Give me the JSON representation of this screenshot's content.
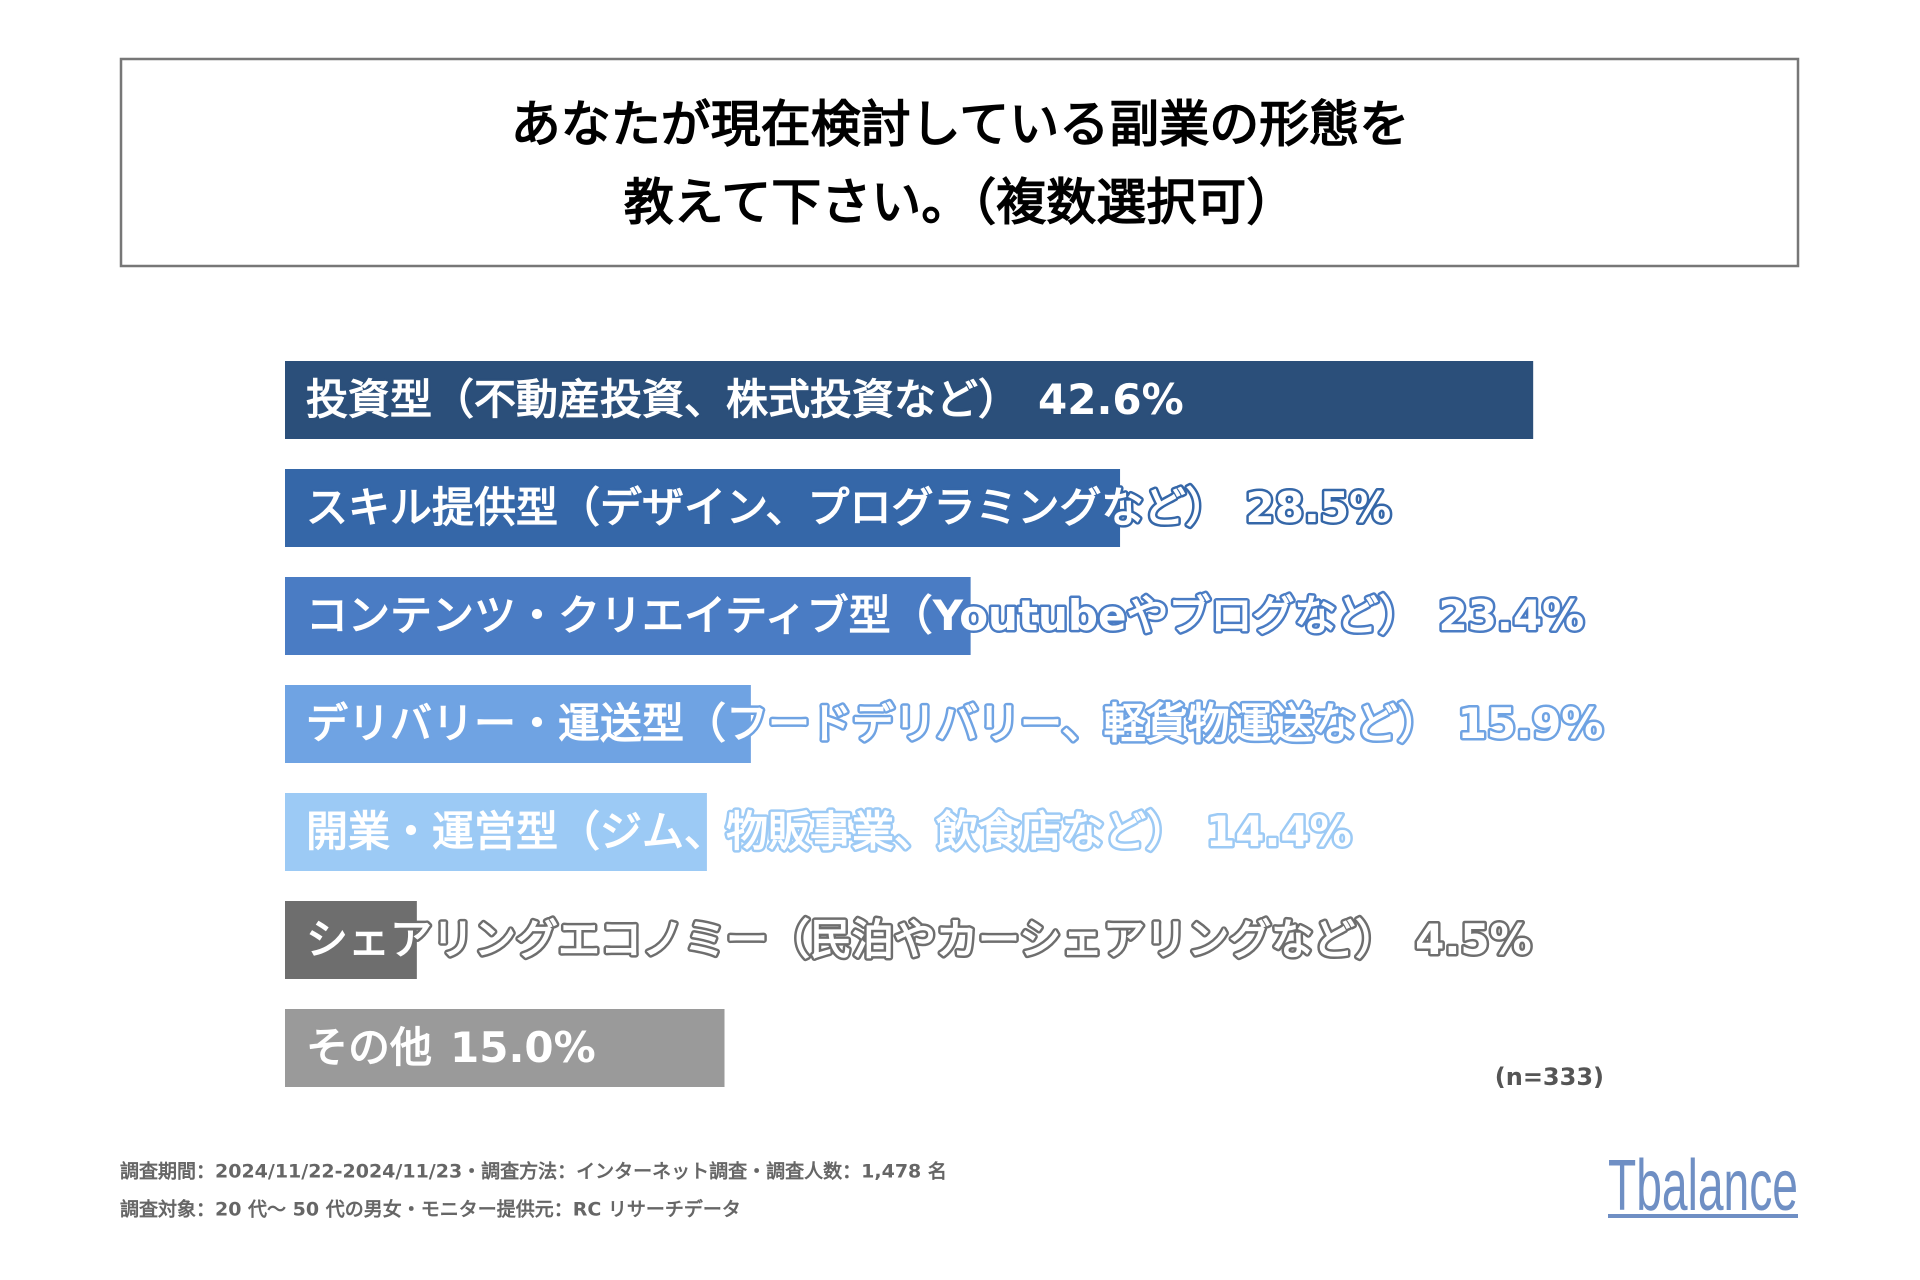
{
  "chart_data": {
    "type": "bar",
    "orientation": "horizontal",
    "title": [
      "あなたが現在検討している副業の形態を",
      "教えて下さい。（複数選択可）"
    ],
    "categories": [
      "投資型（不動産投資、株式投資など）",
      "スキル提供型（デザイン、プログラミングなど）",
      "コンテンツ・クリエイティブ型（Youtubeやブログなど）",
      "デリバリー・運送型（フードデリバリー、軽貨物運送など）",
      "開業・運営型（ジム、物販事業、飲食店など）",
      "シェアリングエコノミー（民泊やカーシェアリングなど）",
      "その他"
    ],
    "values": [
      42.6,
      28.5,
      23.4,
      15.9,
      14.4,
      4.5,
      15.0
    ],
    "value_labels": [
      "42.6%",
      "28.5%",
      "23.4%",
      "15.9%",
      "14.4%",
      "4.5%",
      "15.0%"
    ],
    "colors": [
      "#2b4f7a",
      "#3567a8",
      "#4a7cc4",
      "#6fa3e3",
      "#9ccaf5",
      "#6e6e6e",
      "#9a9a9a"
    ],
    "note": "(n=333)",
    "footer": [
      "調査期間：2024/11/22-2024/11/23・調査方法：インターネット調査・調査人数：1,478 名",
      "調査対象：20 代～ 50 代の男女・モニター提供元：RC リサーチデータ"
    ],
    "logo": "Tbalance"
  }
}
